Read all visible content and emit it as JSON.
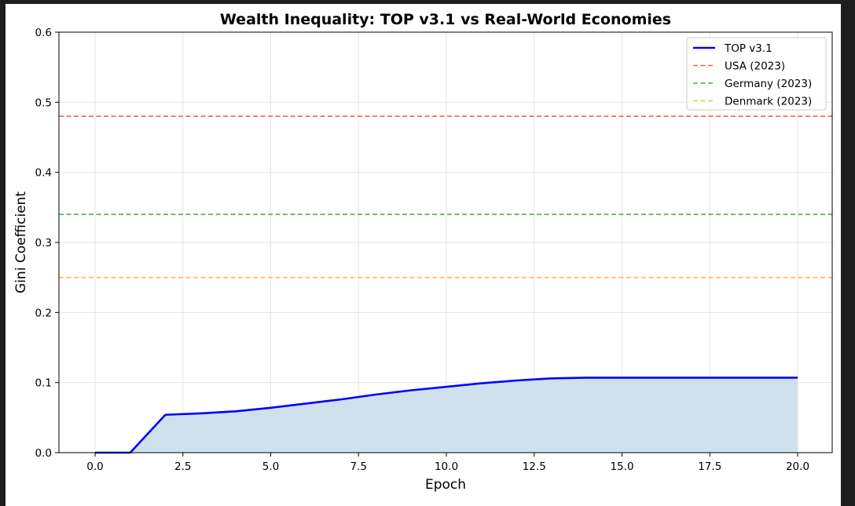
{
  "chart_data": {
    "type": "line",
    "title": "Wealth Inequality: TOP v3.1 vs Real-World Economies",
    "xlabel": "Epoch",
    "ylabel": "Gini Coefficient",
    "xlim": [
      -1,
      21
    ],
    "ylim": [
      0,
      0.6
    ],
    "xticks": [
      "0.0",
      "2.5",
      "5.0",
      "7.5",
      "10.0",
      "12.5",
      "15.0",
      "17.5",
      "20.0"
    ],
    "yticks": [
      "0.0",
      "0.1",
      "0.2",
      "0.3",
      "0.4",
      "0.5",
      "0.6"
    ],
    "grid": true,
    "legend_position": "top-right",
    "series": [
      {
        "name": "TOP v3.1",
        "color": "#0000ff",
        "style": "solid",
        "fill": "#d0e1ee",
        "x": [
          0,
          1,
          2,
          3,
          4,
          5,
          6,
          7,
          8,
          9,
          10,
          11,
          12,
          13,
          14,
          15,
          16,
          17,
          18,
          19,
          20
        ],
        "y": [
          0,
          0,
          0.054,
          0.056,
          0.059,
          0.064,
          0.07,
          0.076,
          0.083,
          0.089,
          0.094,
          0.099,
          0.103,
          0.106,
          0.107,
          0.107,
          0.107,
          0.107,
          0.107,
          0.107,
          0.107
        ]
      }
    ],
    "reference_lines": [
      {
        "name": "USA (2023)",
        "value": 0.48,
        "color": "#ff5b5b"
      },
      {
        "name": "Germany (2023)",
        "value": 0.34,
        "color": "#4caf50"
      },
      {
        "name": "Denmark (2023)",
        "value": 0.25,
        "color": "#ffbb44"
      }
    ]
  }
}
